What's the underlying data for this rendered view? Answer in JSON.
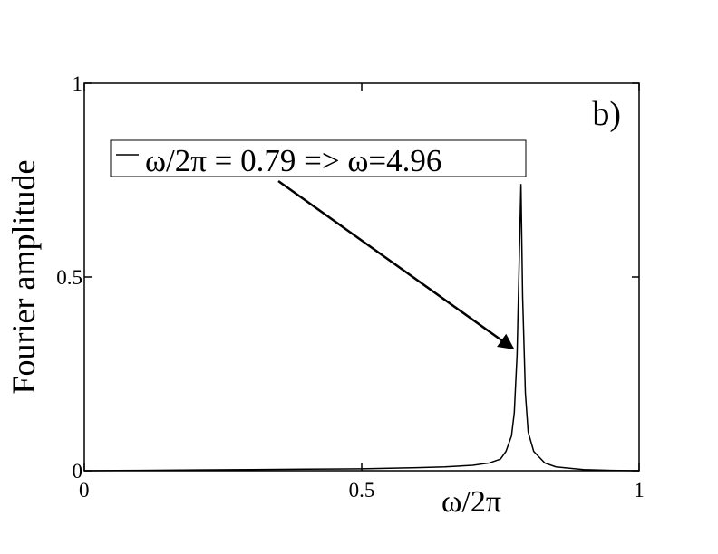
{
  "chart_data": {
    "type": "line",
    "panel_label": "b)",
    "x_label": "ω/2π",
    "y_label": "Fourier amplitude",
    "xlim": [
      0,
      1
    ],
    "ylim": [
      0,
      1
    ],
    "xticks": [
      0,
      0.5,
      1
    ],
    "yticks": [
      0,
      0.5,
      1
    ],
    "x": [
      0,
      0.1,
      0.2,
      0.3,
      0.4,
      0.5,
      0.6,
      0.65,
      0.7,
      0.73,
      0.75,
      0.76,
      0.77,
      0.775,
      0.78,
      0.784,
      0.787,
      0.79,
      0.795,
      0.8,
      0.81,
      0.83,
      0.85,
      0.9,
      0.95,
      1
    ],
    "series": [
      {
        "name": "ω/2π = 0.79 =>  ω=4.96",
        "color": "#000000",
        "values": [
          0,
          0.001,
          0.002,
          0.003,
          0.004,
          0.005,
          0.008,
          0.01,
          0.014,
          0.02,
          0.03,
          0.05,
          0.09,
          0.15,
          0.3,
          0.55,
          0.74,
          0.45,
          0.2,
          0.1,
          0.05,
          0.02,
          0.01,
          0.003,
          0.001,
          0
        ]
      }
    ]
  }
}
